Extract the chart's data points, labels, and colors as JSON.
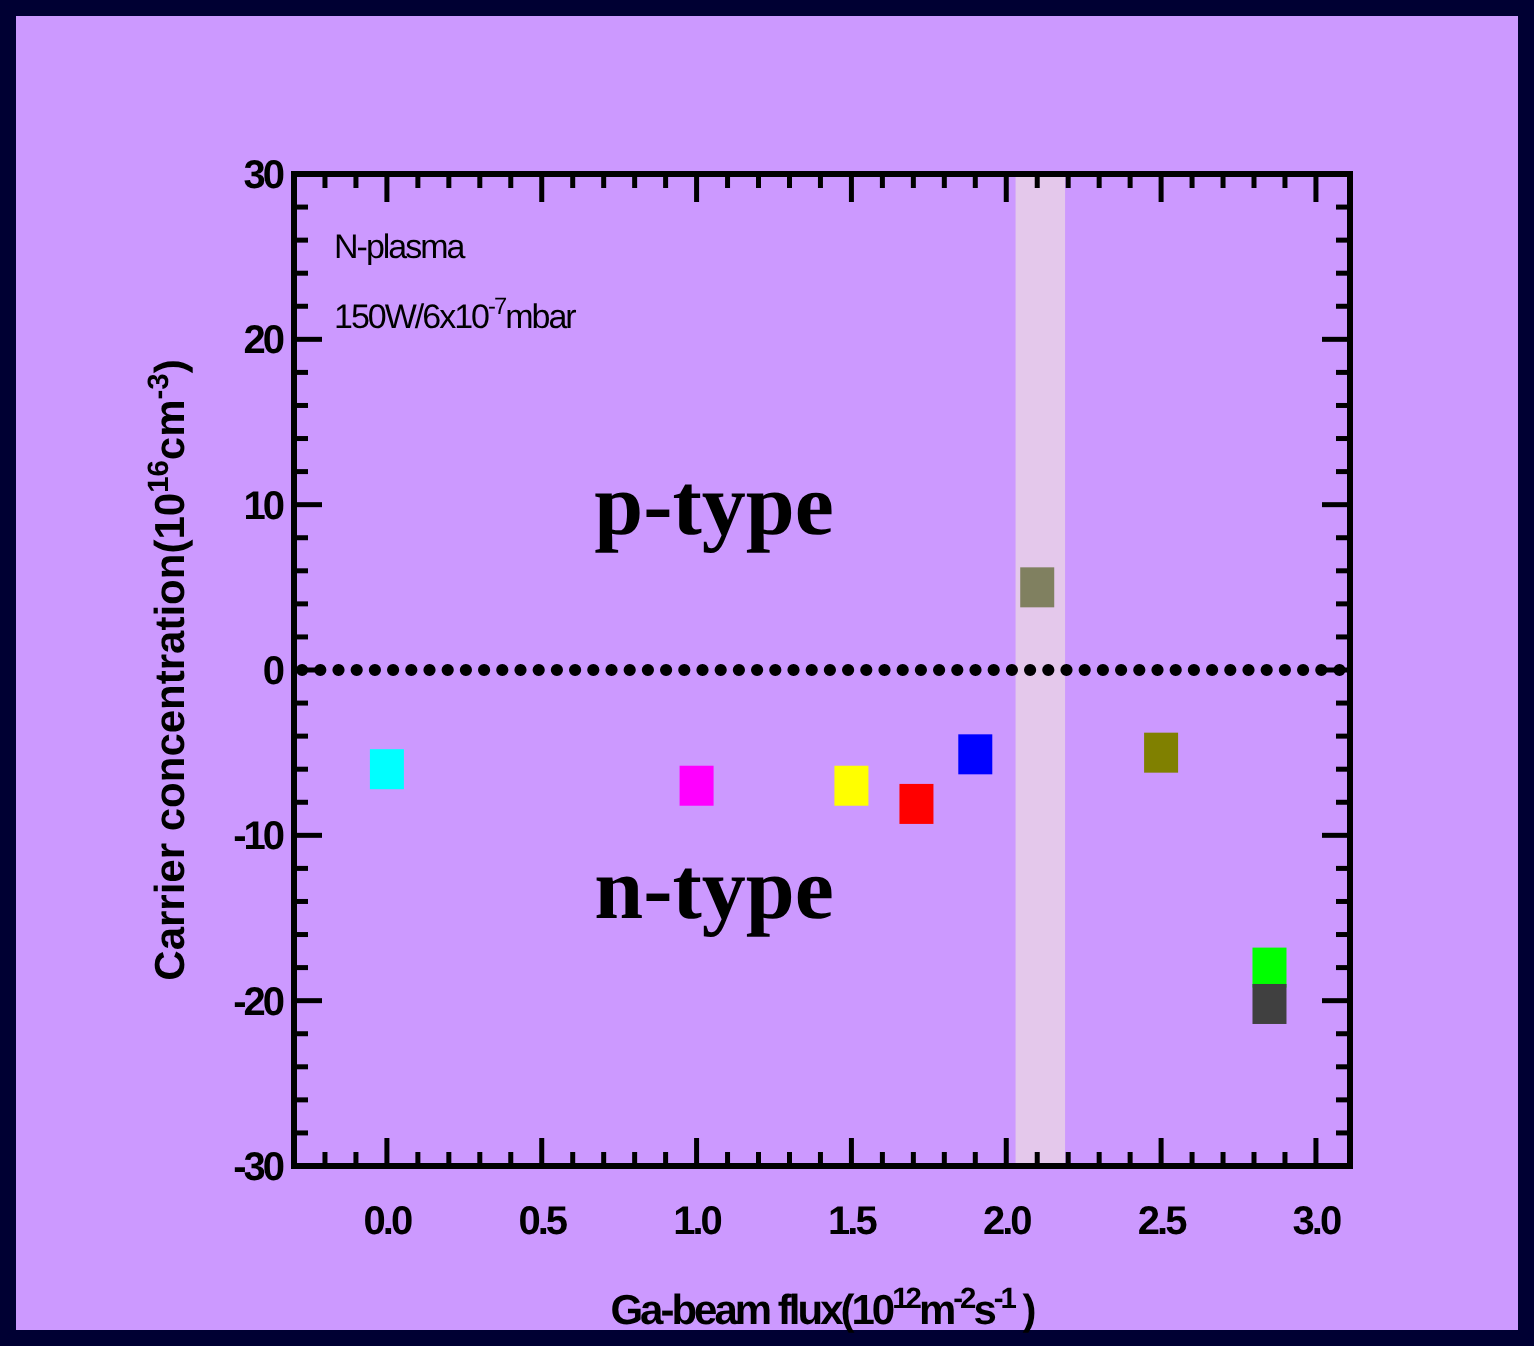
{
  "chart_data": {
    "type": "scatter",
    "xlabel": "Ga-beam flux(10$^{12}$m$^{-2}$s$^{-1}$ )",
    "ylabel": "Carrier concentration(10$^{16}$cm$^{-3}$)",
    "annotations": [
      "N-plasma",
      "150W/6x10$^{-7}$mbar",
      "p-type",
      "n-type"
    ],
    "x": [
      0.0,
      1.0,
      1.5,
      1.71,
      1.9,
      2.1,
      2.5,
      2.85,
      2.85
    ],
    "series": [
      {
        "values": [
          -6.0,
          -7.0,
          -7.0,
          -8.1,
          -5.1,
          5.0,
          -5.0,
          -18.0,
          -20.2
        ],
        "colors": [
          "#00ffff",
          "#ff00ff",
          "#ffff00",
          "#ff0000",
          "#0000ff",
          "#808060",
          "#808000",
          "#00ff00",
          "#404040"
        ]
      }
    ],
    "marker": "square",
    "xlim": [
      -0.3,
      3.11
    ],
    "ylim": [
      -30,
      30
    ],
    "xticks": [
      {
        "value": 0,
        "label": "0.0"
      },
      {
        "value": 0.5,
        "label": "0.5"
      },
      {
        "value": 1,
        "label": "1.0"
      },
      {
        "value": 1.5,
        "label": "1.5"
      },
      {
        "value": 2,
        "label": "2.0"
      },
      {
        "value": 2.5,
        "label": "2.5"
      },
      {
        "value": 3,
        "label": "3.0"
      },
      {
        "value": -0.2,
        "label": null
      },
      {
        "value": -0.1,
        "label": null
      },
      {
        "value": 0.1,
        "label": null
      },
      {
        "value": 0.2,
        "label": null
      },
      {
        "value": 0.3,
        "label": null
      },
      {
        "value": 0.4,
        "label": null
      },
      {
        "value": 0.6,
        "label": null
      },
      {
        "value": 0.7,
        "label": null
      },
      {
        "value": 0.8,
        "label": null
      },
      {
        "value": 0.9,
        "label": null
      },
      {
        "value": 1.1,
        "label": null
      },
      {
        "value": 1.2,
        "label": null
      },
      {
        "value": 1.3,
        "label": null
      },
      {
        "value": 1.4,
        "label": null
      },
      {
        "value": 1.6,
        "label": null
      },
      {
        "value": 1.7,
        "label": null
      },
      {
        "value": 1.8,
        "label": null
      },
      {
        "value": 1.9,
        "label": null
      },
      {
        "value": 2.1,
        "label": null
      },
      {
        "value": 2.2,
        "label": null
      },
      {
        "value": 2.3,
        "label": null
      },
      {
        "value": 2.4,
        "label": null
      },
      {
        "value": 2.6,
        "label": null
      },
      {
        "value": 2.7,
        "label": null
      },
      {
        "value": 2.8,
        "label": null
      },
      {
        "value": 2.9,
        "label": null
      }
    ],
    "yticks": [
      -30,
      -20,
      -10,
      0,
      10,
      20,
      30,
      {
        "value": -28,
        "label": null
      },
      {
        "value": -26,
        "label": null
      },
      {
        "value": -24,
        "label": null
      },
      {
        "value": -22,
        "label": null
      },
      {
        "value": -18,
        "label": null
      },
      {
        "value": -16,
        "label": null
      },
      {
        "value": -14,
        "label": null
      },
      {
        "value": -12,
        "label": null
      },
      {
        "value": -8,
        "label": null
      },
      {
        "value": -6,
        "label": null
      },
      {
        "value": -4,
        "label": null
      },
      {
        "value": -2,
        "label": null
      },
      {
        "value": 2,
        "label": null
      },
      {
        "value": 4,
        "label": null
      },
      {
        "value": 6,
        "label": null
      },
      {
        "value": 8,
        "label": null
      },
      {
        "value": 12,
        "label": null
      },
      {
        "value": 14,
        "label": null
      },
      {
        "value": 16,
        "label": null
      },
      {
        "value": 18,
        "label": null
      },
      {
        "value": 22,
        "label": null
      },
      {
        "value": 24,
        "label": null
      },
      {
        "value": 26,
        "label": null
      },
      {
        "value": 28,
        "label": null
      }
    ],
    "ref_lines": [
      {
        "axis": "y",
        "value": 0,
        "line_style": "dotted",
        "color": "#000000"
      }
    ],
    "bands": [
      {
        "axis": "x",
        "from": 2.03,
        "to": 2.19,
        "color": "#e8d0e8"
      }
    ]
  }
}
